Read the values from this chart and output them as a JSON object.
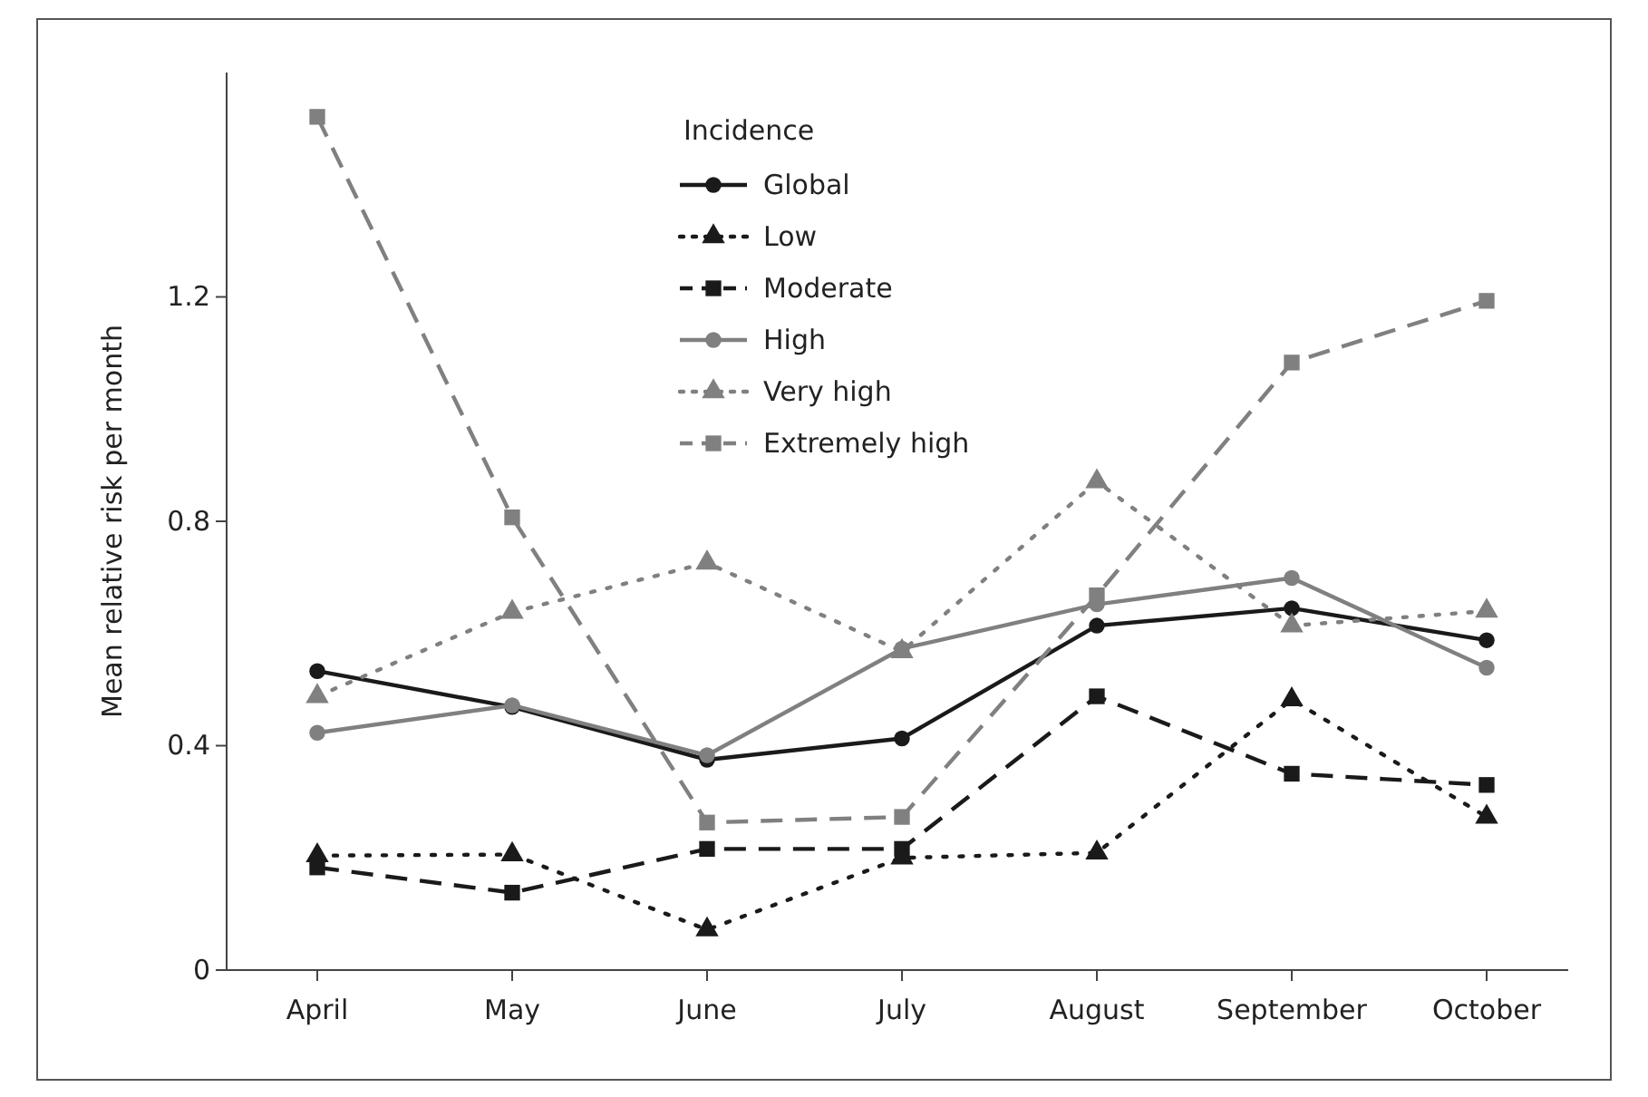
{
  "chart_data": {
    "type": "line",
    "ylabel": "Mean relative risk per month",
    "legend_title": "Incidence",
    "legend": "top",
    "categories": [
      "April",
      "May",
      "June",
      "July",
      "August",
      "September",
      "October"
    ],
    "ylim": [
      0,
      1.6
    ],
    "yticks": [
      0,
      0.4,
      0.8,
      1.2
    ],
    "series": [
      {
        "name": "Global",
        "color": "#1a1a1a",
        "marker": "circle",
        "line_style": "solid",
        "values": [
          0.533,
          0.469,
          0.375,
          0.413,
          0.614,
          0.645,
          0.588
        ]
      },
      {
        "name": "Low",
        "color": "#1a1a1a",
        "marker": "triangle",
        "line_style": "dotted",
        "values": [
          0.204,
          0.206,
          0.072,
          0.2,
          0.209,
          0.482,
          0.273
        ]
      },
      {
        "name": "Moderate",
        "color": "#1a1a1a",
        "marker": "square",
        "line_style": "dashed",
        "values": [
          0.183,
          0.138,
          0.216,
          0.216,
          0.488,
          0.35,
          0.33
        ]
      },
      {
        "name": "High",
        "color": "#808080",
        "marker": "circle",
        "line_style": "solid",
        "values": [
          0.423,
          0.472,
          0.383,
          0.573,
          0.652,
          0.699,
          0.539
        ]
      },
      {
        "name": "Very high",
        "color": "#808080",
        "marker": "triangle",
        "line_style": "dotted",
        "values": [
          0.488,
          0.638,
          0.726,
          0.568,
          0.871,
          0.614,
          0.64
        ]
      },
      {
        "name": "Extremely high",
        "color": "#808080",
        "marker": "square",
        "line_style": "dashed",
        "values": [
          1.521,
          0.807,
          0.263,
          0.273,
          0.668,
          1.083,
          1.193
        ]
      }
    ]
  }
}
